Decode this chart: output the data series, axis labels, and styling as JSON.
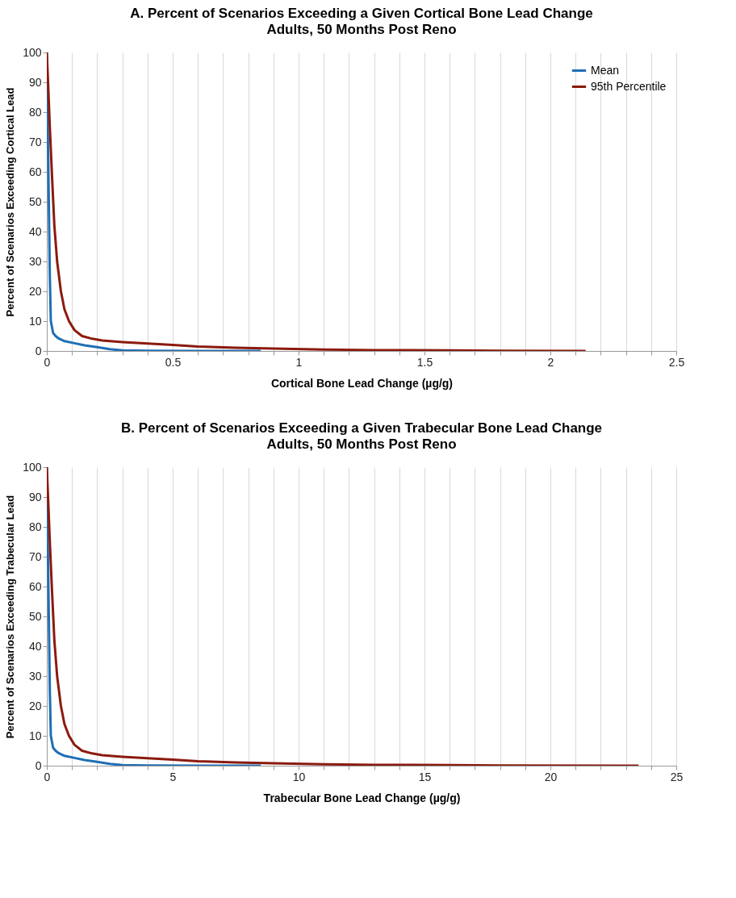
{
  "chart_data": [
    {
      "type": "line",
      "title": "A. Percent of Scenarios Exceeding a Given Cortical Bone Lead Change",
      "subtitle": "Adults, 50 Months Post Reno",
      "xlabel": "Cortical Bone Lead Change (µg/g)",
      "ylabel": "Percent of Scenarios Exceeding Cortical Lead",
      "xlim": [
        0,
        2.5
      ],
      "ylim": [
        0,
        100
      ],
      "xticks": [
        0,
        {
          "value": 0.1,
          "label": null
        },
        {
          "value": 0.2,
          "label": null
        },
        {
          "value": 0.3,
          "label": null
        },
        {
          "value": 0.4,
          "label": null
        },
        0.5,
        {
          "value": 0.6,
          "label": null
        },
        {
          "value": 0.7,
          "label": null
        },
        {
          "value": 0.8,
          "label": null
        },
        {
          "value": 0.9,
          "label": null
        },
        1,
        {
          "value": 1.1,
          "label": null
        },
        {
          "value": 1.2,
          "label": null
        },
        {
          "value": 1.3,
          "label": null
        },
        {
          "value": 1.4,
          "label": null
        },
        1.5,
        {
          "value": 1.6,
          "label": null
        },
        {
          "value": 1.7,
          "label": null
        },
        {
          "value": 1.8,
          "label": null
        },
        {
          "value": 1.9,
          "label": null
        },
        2,
        {
          "value": 2.1,
          "label": null
        },
        {
          "value": 2.2,
          "label": null
        },
        {
          "value": 2.3,
          "label": null
        },
        {
          "value": 2.4,
          "label": null
        },
        2.5
      ],
      "yticks": [
        0,
        10,
        20,
        30,
        40,
        50,
        60,
        70,
        80,
        90,
        100
      ],
      "grid": "x",
      "legend": "top right",
      "marker": "none",
      "line_style": "solid",
      "series": [
        {
          "name": "Mean",
          "color": "#1f6fb5",
          "x": [
            0,
            0.003,
            0.008,
            0.012,
            0.016,
            0.025,
            0.035,
            0.047,
            0.07,
            0.11,
            0.15,
            0.2,
            0.25,
            0.3,
            0.4,
            0.6,
            0.85
          ],
          "values": [
            100,
            80,
            50,
            25,
            10,
            6,
            5,
            4.2,
            3.3,
            2.6,
            1.9,
            1.3,
            0.6,
            0.2,
            0.1,
            0,
            0
          ]
        },
        {
          "name": "95th Percentile",
          "color": "#8b1a0e",
          "x": [
            0,
            0.005,
            0.012,
            0.021,
            0.03,
            0.041,
            0.056,
            0.07,
            0.088,
            0.11,
            0.14,
            0.18,
            0.22,
            0.3,
            0.4,
            0.5,
            0.6,
            0.75,
            0.9,
            1.1,
            1.3,
            1.6,
            1.8,
            2.14
          ],
          "values": [
            100,
            90,
            75,
            58,
            42,
            30,
            20,
            14,
            10,
            7,
            5,
            4.1,
            3.5,
            3,
            2.5,
            2,
            1.5,
            1.1,
            0.8,
            0.5,
            0.3,
            0.2,
            0.1,
            0
          ]
        }
      ]
    },
    {
      "type": "line",
      "title": "B. Percent of Scenarios Exceeding  a Given Trabecular Bone Lead Change",
      "subtitle": "Adults, 50 Months Post Reno",
      "xlabel": "Trabecular Bone Lead Change (µg/g)",
      "ylabel": "Percent of Scenarios Exceeding Trabecular Lead",
      "xlim": [
        0,
        25
      ],
      "ylim": [
        0,
        100
      ],
      "xticks": [
        0,
        {
          "value": 1,
          "label": null
        },
        {
          "value": 2,
          "label": null
        },
        {
          "value": 3,
          "label": null
        },
        {
          "value": 4,
          "label": null
        },
        5,
        {
          "value": 6,
          "label": null
        },
        {
          "value": 7,
          "label": null
        },
        {
          "value": 8,
          "label": null
        },
        {
          "value": 9,
          "label": null
        },
        10,
        {
          "value": 11,
          "label": null
        },
        {
          "value": 12,
          "label": null
        },
        {
          "value": 13,
          "label": null
        },
        {
          "value": 14,
          "label": null
        },
        15,
        {
          "value": 16,
          "label": null
        },
        {
          "value": 17,
          "label": null
        },
        {
          "value": 18,
          "label": null
        },
        {
          "value": 19,
          "label": null
        },
        20,
        {
          "value": 21,
          "label": null
        },
        {
          "value": 22,
          "label": null
        },
        {
          "value": 23,
          "label": null
        },
        {
          "value": 24,
          "label": null
        },
        25
      ],
      "yticks": [
        0,
        10,
        20,
        30,
        40,
        50,
        60,
        70,
        80,
        90,
        100
      ],
      "grid": "x",
      "legend": "top right",
      "marker": "none",
      "line_style": "solid",
      "series": [
        {
          "name": "Mean",
          "color": "#1f6fb5",
          "x": [
            0,
            0.03,
            0.08,
            0.12,
            0.16,
            0.25,
            0.35,
            0.47,
            0.7,
            1.1,
            1.5,
            2,
            2.5,
            3,
            4,
            6,
            8.5
          ],
          "values": [
            100,
            80,
            50,
            25,
            10,
            6,
            5,
            4.2,
            3.3,
            2.6,
            1.9,
            1.3,
            0.6,
            0.2,
            0.1,
            0,
            0
          ]
        },
        {
          "name": "95th Percentile",
          "color": "#8b1a0e",
          "x": [
            0,
            0.05,
            0.12,
            0.21,
            0.3,
            0.41,
            0.56,
            0.7,
            0.88,
            1.1,
            1.4,
            1.8,
            2.2,
            3,
            4,
            5,
            6,
            7.5,
            9,
            11,
            13,
            16,
            18,
            23.5
          ],
          "values": [
            100,
            90,
            75,
            58,
            42,
            30,
            20,
            14,
            10,
            7,
            5,
            4.1,
            3.5,
            3,
            2.5,
            2,
            1.5,
            1.1,
            0.8,
            0.5,
            0.3,
            0.2,
            0.1,
            0
          ]
        }
      ]
    }
  ]
}
